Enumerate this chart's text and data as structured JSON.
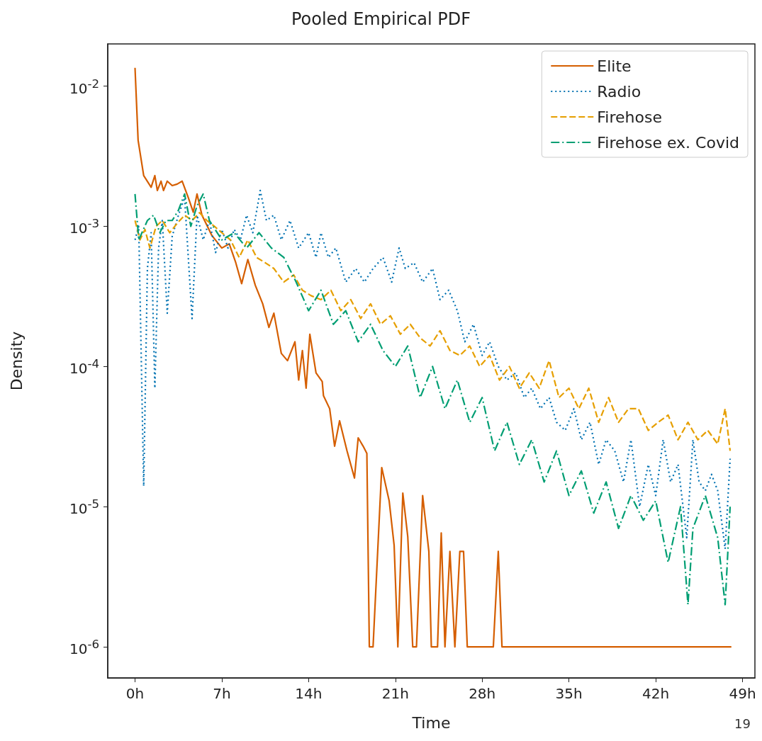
{
  "chart_data": {
    "type": "line",
    "title": "Pooled Empirical PDF",
    "xlabel": "Time",
    "ylabel": "Density",
    "log": "y",
    "grid": false,
    "legend": "top right",
    "marker": "none",
    "xlim": [
      -2.2,
      50
    ],
    "xticks": [
      {
        "value": 0,
        "label": "0h"
      },
      {
        "value": 7,
        "label": "7h"
      },
      {
        "value": 14,
        "label": "14h"
      },
      {
        "value": 21,
        "label": "21h"
      },
      {
        "value": 28,
        "label": "28h"
      },
      {
        "value": 35,
        "label": "35h"
      },
      {
        "value": 42,
        "label": "42h"
      },
      {
        "value": 49,
        "label": "49h"
      }
    ],
    "ylim": [
      6e-07,
      0.02
    ],
    "yticks": [
      {
        "value": 1e-06,
        "label": "10$^{-6}$"
      },
      {
        "value": 1e-05,
        "label": "10$^{-5}$"
      },
      {
        "value": 0.0001,
        "label": "10$^{-4}$"
      },
      {
        "value": 0.001,
        "label": "10$^{-3}$"
      },
      {
        "value": 0.01,
        "label": "10$^{-2}$"
      }
    ],
    "annotations": [
      "19"
    ],
    "series": [
      {
        "name": "Elite",
        "color": "#d55e00",
        "line_style": "solid",
        "x": [
          0,
          0.25,
          0.7,
          1.3,
          1.6,
          1.8,
          2.1,
          2.3,
          2.6,
          3.0,
          3.4,
          3.8,
          4.3,
          4.7,
          5.0,
          5.4,
          6.2,
          7.0,
          7.6,
          8.1,
          8.6,
          9.1,
          9.7,
          10.3,
          10.8,
          11.2,
          11.8,
          12.3,
          12.9,
          13.2,
          13.5,
          13.8,
          14.1,
          14.6,
          15.1,
          15.2,
          15.7,
          16.1,
          16.5,
          17.1,
          17.7,
          18.0,
          18.4,
          18.7,
          18.9,
          19.2,
          19.9,
          20.5,
          20.9,
          21.2,
          21.6,
          22.0,
          22.4,
          22.7,
          23.2,
          23.7,
          23.9,
          24.4,
          24.7,
          25.0,
          25.4,
          25.8,
          26.2,
          26.5,
          26.8,
          28.9,
          29.3,
          29.6,
          48.1
        ],
        "values": [
          0.0135,
          0.0041,
          0.0023,
          0.0019,
          0.0023,
          0.0018,
          0.0021,
          0.0018,
          0.0021,
          0.00195,
          0.002,
          0.0021,
          0.0016,
          0.00126,
          0.0017,
          0.0012,
          0.00086,
          0.0007,
          0.00075,
          0.00056,
          0.00039,
          0.00058,
          0.00038,
          0.00028,
          0.00019,
          0.00024,
          0.000124,
          0.00011,
          0.00015,
          8e-05,
          0.00013,
          7e-05,
          0.00017,
          9e-05,
          7.8e-05,
          6.2e-05,
          5e-05,
          2.7e-05,
          4.1e-05,
          2.5e-05,
          1.6e-05,
          3.1e-05,
          2.7e-05,
          2.4e-05,
          1e-06,
          1e-06,
          1.9e-05,
          1.1e-05,
          5.3e-06,
          1e-06,
          1.25e-05,
          6.1e-06,
          1e-06,
          1e-06,
          1.2e-05,
          4.8e-06,
          1e-06,
          1e-06,
          6.5e-06,
          1e-06,
          4.8e-06,
          1e-06,
          4.8e-06,
          4.8e-06,
          1e-06,
          1e-06,
          4.8e-06,
          1e-06,
          1e-06
        ]
      },
      {
        "name": "Radio",
        "color": "#0072b2",
        "line_style": "dotted",
        "x": [
          0,
          0.3,
          0.7,
          1.0,
          1.3,
          1.6,
          1.9,
          2.2,
          2.6,
          3.0,
          3.5,
          4.0,
          4.6,
          5.0,
          5.5,
          6.0,
          6.5,
          7.0,
          7.5,
          8.0,
          8.5,
          9.0,
          9.5,
          10.1,
          10.6,
          11.2,
          11.8,
          12.5,
          13.2,
          14.0,
          14.6,
          15.0,
          15.6,
          16.2,
          17.0,
          17.8,
          18.5,
          19.2,
          20.0,
          20.7,
          21.3,
          21.8,
          22.5,
          23.2,
          24.0,
          24.6,
          25.3,
          26.0,
          26.6,
          27.3,
          28.0,
          28.6,
          29.3,
          30.0,
          30.7,
          31.4,
          32.0,
          32.7,
          33.4,
          34.0,
          34.7,
          35.4,
          36.0,
          36.7,
          37.4,
          38.0,
          38.7,
          39.4,
          40.0,
          40.7,
          41.4,
          42.0,
          42.6,
          43.2,
          43.8,
          44.5,
          45.0,
          45.5,
          46.0,
          46.5,
          47.0,
          47.6,
          48.0
        ],
        "values": [
          0.0008,
          0.001,
          1.4e-05,
          0.0005,
          0.0009,
          7e-05,
          0.0007,
          0.0011,
          0.00024,
          0.00085,
          0.0012,
          0.0016,
          0.00022,
          0.0012,
          0.0008,
          0.0011,
          0.00065,
          0.00095,
          0.0007,
          0.00095,
          0.0008,
          0.0012,
          0.0009,
          0.0018,
          0.0011,
          0.0012,
          0.0008,
          0.0011,
          0.0007,
          0.0009,
          0.0006,
          0.0009,
          0.0006,
          0.0007,
          0.0004,
          0.0005,
          0.0004,
          0.0005,
          0.0006,
          0.0004,
          0.0007,
          0.0005,
          0.00055,
          0.0004,
          0.0005,
          0.0003,
          0.00035,
          0.00025,
          0.00015,
          0.0002,
          0.00012,
          0.00015,
          0.0001,
          8e-05,
          9e-05,
          6e-05,
          7e-05,
          5e-05,
          6e-05,
          4e-05,
          3.5e-05,
          5e-05,
          3e-05,
          4e-05,
          2e-05,
          3e-05,
          2.5e-05,
          1.5e-05,
          3e-05,
          1e-05,
          2e-05,
          1.2e-05,
          3e-05,
          1.5e-05,
          2e-05,
          6e-06,
          3e-05,
          1.5e-05,
          1.3e-05,
          1.7e-05,
          1.3e-05,
          5e-06,
          2.2e-05
        ]
      },
      {
        "name": "Firehose",
        "color": "#e69f00",
        "line_style": "dashed",
        "x": [
          0,
          0.4,
          0.8,
          1.2,
          1.7,
          2.2,
          2.8,
          3.4,
          4.0,
          4.6,
          5.2,
          5.8,
          6.4,
          7.0,
          7.7,
          8.4,
          9.1,
          9.8,
          10.5,
          11.2,
          12.0,
          12.8,
          13.5,
          14.2,
          15.0,
          15.8,
          16.6,
          17.4,
          18.2,
          19.0,
          19.8,
          20.6,
          21.4,
          22.2,
          23.0,
          23.8,
          24.6,
          25.4,
          26.2,
          27.0,
          27.8,
          28.6,
          29.4,
          30.2,
          31.0,
          31.8,
          32.6,
          33.4,
          34.2,
          35.0,
          35.8,
          36.6,
          37.4,
          38.2,
          39.0,
          39.8,
          40.6,
          41.4,
          42.2,
          43.0,
          43.8,
          44.6,
          45.4,
          46.2,
          47.0,
          47.6,
          48.0
        ],
        "values": [
          0.0011,
          0.0008,
          0.00095,
          0.0007,
          0.001,
          0.0011,
          0.0009,
          0.00105,
          0.0012,
          0.0011,
          0.00125,
          0.0011,
          0.001,
          0.0009,
          0.0008,
          0.0006,
          0.0008,
          0.0006,
          0.00055,
          0.0005,
          0.0004,
          0.00045,
          0.00035,
          0.00032,
          0.0003,
          0.00035,
          0.00025,
          0.0003,
          0.00022,
          0.00028,
          0.0002,
          0.00023,
          0.00017,
          0.0002,
          0.00016,
          0.00014,
          0.00018,
          0.00013,
          0.00012,
          0.00014,
          0.0001,
          0.00012,
          8e-05,
          0.0001,
          7e-05,
          9e-05,
          7e-05,
          0.00011,
          6e-05,
          7e-05,
          5e-05,
          7e-05,
          4e-05,
          6e-05,
          4e-05,
          5e-05,
          5e-05,
          3.5e-05,
          4e-05,
          4.5e-05,
          3e-05,
          4e-05,
          3e-05,
          3.5e-05,
          2.8e-05,
          5e-05,
          2.5e-05
        ]
      },
      {
        "name": "Firehose ex. Covid",
        "color": "#009e73",
        "line_style": "dashdot",
        "x": [
          0,
          0.3,
          1.0,
          1.5,
          2.0,
          2.5,
          3.0,
          3.5,
          4.0,
          4.5,
          5.0,
          5.5,
          6.0,
          7.0,
          8.0,
          9.0,
          10.0,
          11.0,
          12.0,
          13.0,
          14.0,
          15.0,
          16.0,
          17.0,
          18.0,
          19.0,
          20.0,
          21.0,
          22.0,
          23.0,
          24.0,
          25.0,
          26.0,
          27.0,
          28.0,
          29.0,
          30.0,
          31.0,
          32.0,
          33.0,
          34.0,
          35.0,
          36.0,
          37.0,
          38.0,
          39.0,
          40.0,
          41.0,
          42.0,
          43.0,
          44.0,
          44.6,
          45.0,
          46.0,
          47.0,
          47.6,
          48.0
        ],
        "values": [
          0.0017,
          0.0008,
          0.0011,
          0.0012,
          0.0009,
          0.0011,
          0.0011,
          0.0013,
          0.0017,
          0.001,
          0.0014,
          0.0017,
          0.0011,
          0.0008,
          0.0009,
          0.0007,
          0.0009,
          0.0007,
          0.0006,
          0.0004,
          0.00025,
          0.00035,
          0.0002,
          0.00025,
          0.00015,
          0.0002,
          0.00013,
          0.0001,
          0.00014,
          6e-05,
          0.0001,
          5e-05,
          8e-05,
          4e-05,
          6e-05,
          2.5e-05,
          4e-05,
          2e-05,
          3e-05,
          1.5e-05,
          2.5e-05,
          1.2e-05,
          1.8e-05,
          9e-06,
          1.5e-05,
          7e-06,
          1.2e-05,
          8e-06,
          1.1e-05,
          4e-06,
          1e-05,
          2e-06,
          7e-06,
          1.2e-05,
          6e-06,
          2e-06,
          1e-05
        ]
      }
    ]
  }
}
